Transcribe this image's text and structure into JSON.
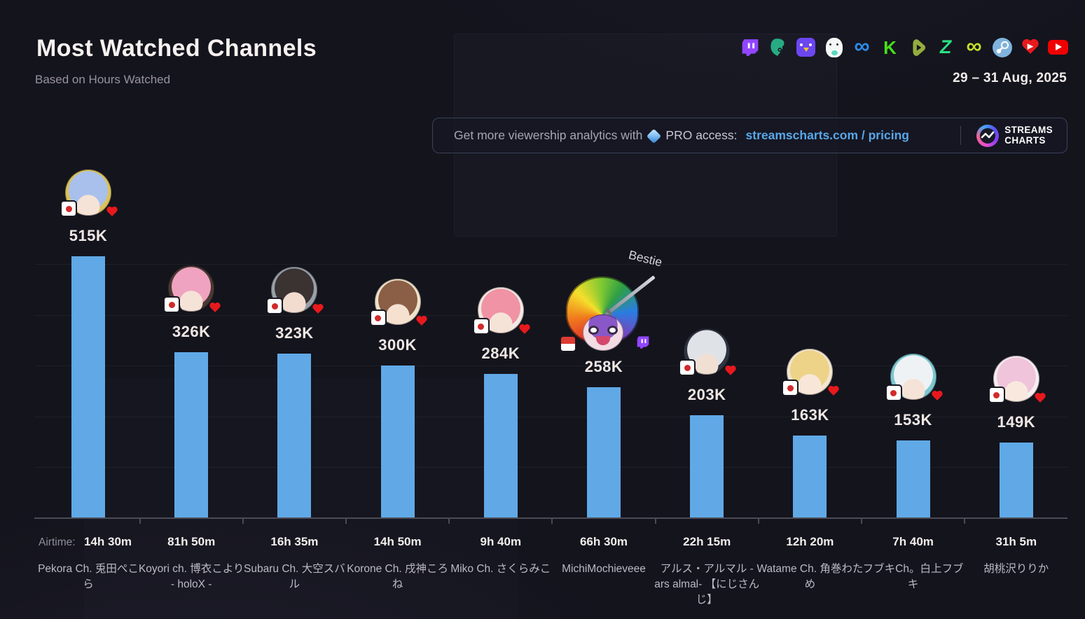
{
  "header": {
    "title": "Most Watched Channels",
    "subtitle": "Based on Hours Watched",
    "date_range": "29 – 31 Aug, 2025",
    "platforms": [
      {
        "name": "twitch",
        "color": "#9146ff"
      },
      {
        "name": "trovo",
        "color": "#27ab83"
      },
      {
        "name": "chick",
        "color": "#6c46f0"
      },
      {
        "name": "dino",
        "color": "#f4f8f6"
      },
      {
        "name": "infinity-blue",
        "color": "#2b8ceb"
      },
      {
        "name": "kick",
        "color": "#45e01a"
      },
      {
        "name": "play-badge",
        "color": "#94ad3f"
      },
      {
        "name": "z-bolt",
        "color": "#2ce081"
      },
      {
        "name": "infinity-lime",
        "color": "#c6dd2c"
      },
      {
        "name": "steam",
        "color": "#7fb3dd"
      },
      {
        "name": "heart-play",
        "color": "#e8191d"
      },
      {
        "name": "youtube",
        "color": "#f00000"
      }
    ]
  },
  "banner": {
    "text_prefix": "Get more viewership analytics with",
    "pro_text": "PRO access:",
    "link": "streamscharts.com / pricing",
    "brand_line1": "STREAMS",
    "brand_line2": "CHARTS"
  },
  "chart_data": {
    "type": "bar",
    "title": "Most Watched Channels",
    "subtitle": "Based on Hours Watched",
    "metric": "Hours Watched",
    "date_range": "29 – 31 Aug, 2025",
    "ylim": [
      0,
      550000
    ],
    "gridlines_every": 100000,
    "grid": true,
    "legend": false,
    "bar_color": "#60a9e6",
    "airtime_label": "Airtime:",
    "categories": [
      "Pekora Ch. 兎田ぺこら",
      "Koyori ch. 博衣こより - holoX -",
      "Subaru Ch. 大空スバル",
      "Korone Ch. 戌神ころね",
      "Miko Ch. さくらみこ",
      "MichiMochieveee",
      "アルス・アルマル -ars almal- 【にじさんじ】",
      "Watame Ch. 角巻わため",
      "フブキCh。白上フブキ",
      "胡桃沢りりか"
    ],
    "series": [
      {
        "name": "Hours Watched",
        "values": [
          515000,
          326000,
          323000,
          300000,
          284000,
          258000,
          203000,
          163000,
          153000,
          149000
        ]
      }
    ],
    "channels": [
      {
        "name": "Pekora Ch. 兎田ぺこら",
        "value": 515000,
        "value_label": "515K",
        "airtime": "14h 30m",
        "flag": "jp",
        "badge": "heart",
        "avatar": {
          "bg": "#d9c35c",
          "hair": "#a9c0ec",
          "skin": "#f6e3d7"
        }
      },
      {
        "name": "Koyori ch. 博衣こより - holoX -",
        "value": 326000,
        "value_label": "326K",
        "airtime": "81h 50m",
        "flag": "jp",
        "badge": "heart",
        "avatar": {
          "bg": "#4a3a33",
          "hair": "#efa3c0",
          "skin": "#f6e3d7"
        }
      },
      {
        "name": "Subaru Ch. 大空スバル",
        "value": 323000,
        "value_label": "323K",
        "airtime": "16h 35m",
        "flag": "jp",
        "badge": "heart",
        "avatar": {
          "bg": "#9aa0a8",
          "hair": "#3a3332",
          "skin": "#f2dcd0"
        }
      },
      {
        "name": "Korone Ch. 戌神ころね",
        "value": 300000,
        "value_label": "300K",
        "airtime": "14h 50m",
        "flag": "jp",
        "badge": "heart",
        "avatar": {
          "bg": "#efe3cc",
          "hair": "#8a5f46",
          "skin": "#f6e0d0"
        }
      },
      {
        "name": "Miko Ch. さくらみこ",
        "value": 284000,
        "value_label": "284K",
        "airtime": "9h 40m",
        "flag": "jp",
        "badge": "heart",
        "avatar": {
          "bg": "#f3e9e4",
          "hair": "#ef93a5",
          "skin": "#f6e3d7"
        }
      },
      {
        "name": "MichiMochieveee",
        "value": 258000,
        "value_label": "258K",
        "airtime": "66h 30m",
        "flag": "id",
        "badge": "twitch",
        "annotation": "Bestie",
        "avatar_style": "rainbow-clown-sword",
        "avatar": {
          "bg": "#8a57c8",
          "hair": "#8a57c8",
          "skin": "#f3dce4"
        }
      },
      {
        "name": "アルス・アルマル -ars almal- 【にじさんじ】",
        "value": 203000,
        "value_label": "203K",
        "airtime": "22h 15m",
        "flag": "jp",
        "badge": "heart",
        "avatar": {
          "bg": "#2e3440",
          "hair": "#dfe3e8",
          "skin": "#f2dfd4"
        }
      },
      {
        "name": "Watame Ch. 角巻わため",
        "value": 163000,
        "value_label": "163K",
        "airtime": "12h 20m",
        "flag": "jp",
        "badge": "heart",
        "avatar": {
          "bg": "#f3e6d2",
          "hair": "#ecd388",
          "skin": "#f8e6d8"
        }
      },
      {
        "name": "フブキCh。白上フブキ",
        "value": 153000,
        "value_label": "153K",
        "airtime": "7h 40m",
        "flag": "jp",
        "badge": "heart",
        "avatar": {
          "bg": "#7cc7cf",
          "hair": "#eef2f5",
          "skin": "#f6e3d7"
        }
      },
      {
        "name": "胡桃沢りりか",
        "value": 149000,
        "value_label": "149K",
        "airtime": "31h 5m",
        "flag": "jp",
        "badge": "heart",
        "avatar": {
          "bg": "#f6eef2",
          "hair": "#f0c4da",
          "skin": "#f8e8de"
        }
      }
    ]
  }
}
